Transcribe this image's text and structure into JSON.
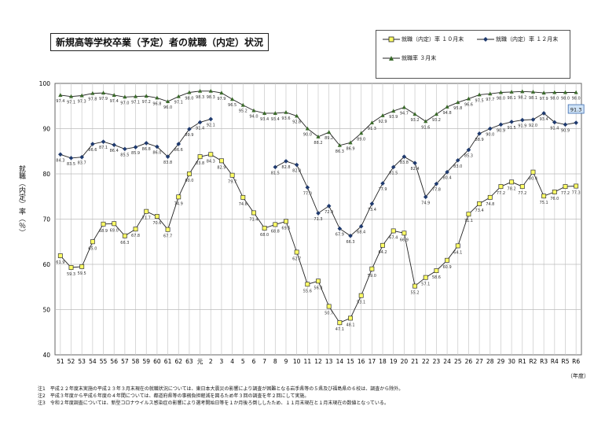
{
  "title": "新規高等学校卒業（予定）者の就職（内定）状況",
  "legend": [
    {
      "name": "就職（内定）率 １０月末",
      "marker": "square",
      "color": "#cccc00"
    },
    {
      "name": "就職（内定）率 １２月末",
      "marker": "diamond",
      "color": "#1f3a6e"
    },
    {
      "name": "就職率 ３月末",
      "marker": "triangle",
      "color": "#3a6a2a"
    }
  ],
  "ylabel": "就職（内定）率（％）",
  "xunit": "（年度）",
  "callout": "91.3",
  "notes": [
    "注1　平成２２年度末実施の平成２３年３月末現在の就職状況については、東日本大震災の影響により調査が困難となる岩手県等の５県及び福島県の６校は、調査から除外。",
    "注2　平成３年度から平成６年度の４年間については、都道府県等の事務負担軽減を図るため年３回の調査を年２回にして実施。",
    "注3　令和２年度調査については、新型コロナウイルス感染症の影響により選考開始日等を１か月後ろ倒ししたため、１１月末現在と１月末現在の数値となっている。"
  ],
  "chart_data": {
    "type": "line",
    "x": [
      "51",
      "52",
      "53",
      "54",
      "55",
      "56",
      "57",
      "58",
      "59",
      "60",
      "61",
      "62",
      "63",
      "元",
      "2",
      "3",
      "4",
      "5",
      "6",
      "7",
      "8",
      "9",
      "10",
      "11",
      "12",
      "13",
      "14",
      "15",
      "16",
      "17",
      "18",
      "19",
      "20",
      "21",
      "22",
      "23",
      "24",
      "25",
      "26",
      "27",
      "28",
      "29",
      "30",
      "R1",
      "R2",
      "R3",
      "R4",
      "R5",
      "R6"
    ],
    "ylim": [
      40,
      100
    ],
    "yticks": [
      40,
      50,
      60,
      70,
      80,
      90,
      100
    ],
    "grid": true,
    "series": [
      {
        "name": "就職（内定）率 １０月末",
        "values": [
          61.9,
          59.3,
          59.5,
          65.0,
          68.9,
          69.0,
          66.3,
          67.8,
          71.7,
          70.6,
          67.7,
          74.9,
          80.0,
          83.8,
          84.3,
          82.9,
          79.7,
          74.8,
          71.4,
          68.0,
          68.8,
          69.5,
          62.7,
          55.6,
          56.3,
          50.7,
          47.1,
          48.1,
          53.1,
          59.0,
          64.2,
          67.4,
          66.9,
          55.2,
          57.1,
          58.6,
          60.9,
          64.1,
          71.1,
          73.4,
          74.8,
          77.2,
          78.2,
          77.2,
          80.4,
          75.1,
          76.0,
          77.2,
          77.3
        ]
      },
      {
        "name": "就職（内定）率 １２月末",
        "values": [
          84.3,
          83.5,
          83.7,
          86.6,
          87.1,
          86.4,
          85.5,
          85.9,
          86.8,
          86.0,
          83.8,
          86.6,
          89.9,
          91.4,
          92.1,
          null,
          null,
          null,
          null,
          null,
          81.5,
          82.8,
          82.0,
          77.0,
          71.3,
          72.9,
          67.9,
          66.3,
          68.4,
          73.4,
          77.9,
          81.5,
          83.8,
          82.4,
          74.9,
          77.8,
          80.4,
          83.0,
          85.3,
          88.9,
          90.0,
          90.9,
          91.5,
          91.9,
          92.0,
          93.4,
          91.4,
          90.9,
          91.3
        ]
      },
      {
        "name": "就職率 ３月末",
        "values": [
          97.4,
          97.1,
          97.3,
          97.8,
          97.9,
          97.4,
          97.0,
          97.1,
          97.2,
          96.8,
          96.0,
          97.1,
          98.0,
          98.3,
          98.3,
          97.9,
          96.5,
          95.2,
          94.0,
          93.4,
          93.4,
          93.6,
          92.8,
          90.0,
          88.2,
          89.2,
          86.3,
          86.9,
          89.0,
          91.3,
          92.9,
          93.9,
          94.7,
          93.2,
          91.6,
          93.2,
          94.8,
          95.8,
          96.6,
          97.5,
          97.7,
          98.0,
          98.1,
          98.2,
          98.1,
          97.9,
          98.0,
          98.0,
          98.0
        ]
      }
    ],
    "labels": [
      [
        "61.9",
        "59.3",
        "59.5",
        "65.0",
        "68.9",
        "69.0",
        "66.3",
        "67.8",
        "71.7",
        "70.6",
        "67.7",
        "74.9",
        "80.0",
        "83.8",
        "84.3",
        "82.9",
        "79.7",
        "74.8",
        "71.4",
        "68.0",
        "68.8",
        "69.5",
        "62.7",
        "55.6",
        "56.3",
        "50.7",
        "47.1",
        "48.1",
        "53.1",
        "59.0",
        "64.2",
        "67.4",
        "66.9",
        "55.2",
        "57.1",
        "58.6",
        "60.9",
        "64.1",
        "71.1",
        "73.4",
        "74.8",
        "77.2",
        "78.2",
        "77.2",
        "80.4",
        "75.1",
        "76.0",
        "77.2",
        "77.3"
      ],
      [
        "84.3",
        "83.5",
        "83.7",
        "86.6",
        "87.1",
        "86.4",
        "85.5",
        "85.9",
        "86.8",
        "86.0",
        "83.8",
        "86.6",
        "89.9",
        "91.4",
        "92.1",
        "",
        "",
        "",
        "",
        "",
        "81.5",
        "82.8",
        "82.0",
        "77.0",
        "71.3",
        "72.9",
        "67.9",
        "66.3",
        "68.4",
        "73.4",
        "77.9",
        "81.5",
        "83.8",
        "82.4",
        "74.9",
        "77.8",
        "80.4",
        "83.0",
        "85.3",
        "88.9",
        "90.0",
        "90.9",
        "91.5",
        "91.9",
        "92.0",
        "93.4",
        "91.4",
        "90.9",
        ""
      ],
      [
        "97.4",
        "97.1",
        "97.3",
        "97.8",
        "97.9",
        "97.4",
        "97.0",
        "97.1",
        "97.2",
        "96.8",
        "96.0",
        "97.1",
        "98.0",
        "98.3",
        "98.3",
        "97.9",
        "96.5",
        "95.2",
        "94.0",
        "93.4",
        "93.4",
        "93.6",
        "92.8",
        "90.0",
        "88.2",
        "89.2",
        "86.3",
        "86.9",
        "89.0",
        "91.3",
        "92.9",
        "93.9",
        "94.7",
        "93.2",
        "91.6",
        "93.2",
        "94.8",
        "95.8",
        "96.6",
        "97.5",
        "97.7",
        "98.0",
        "98.1",
        "98.2",
        "98.1",
        "97.9",
        "98.0",
        "98.0",
        "98.0"
      ]
    ]
  }
}
